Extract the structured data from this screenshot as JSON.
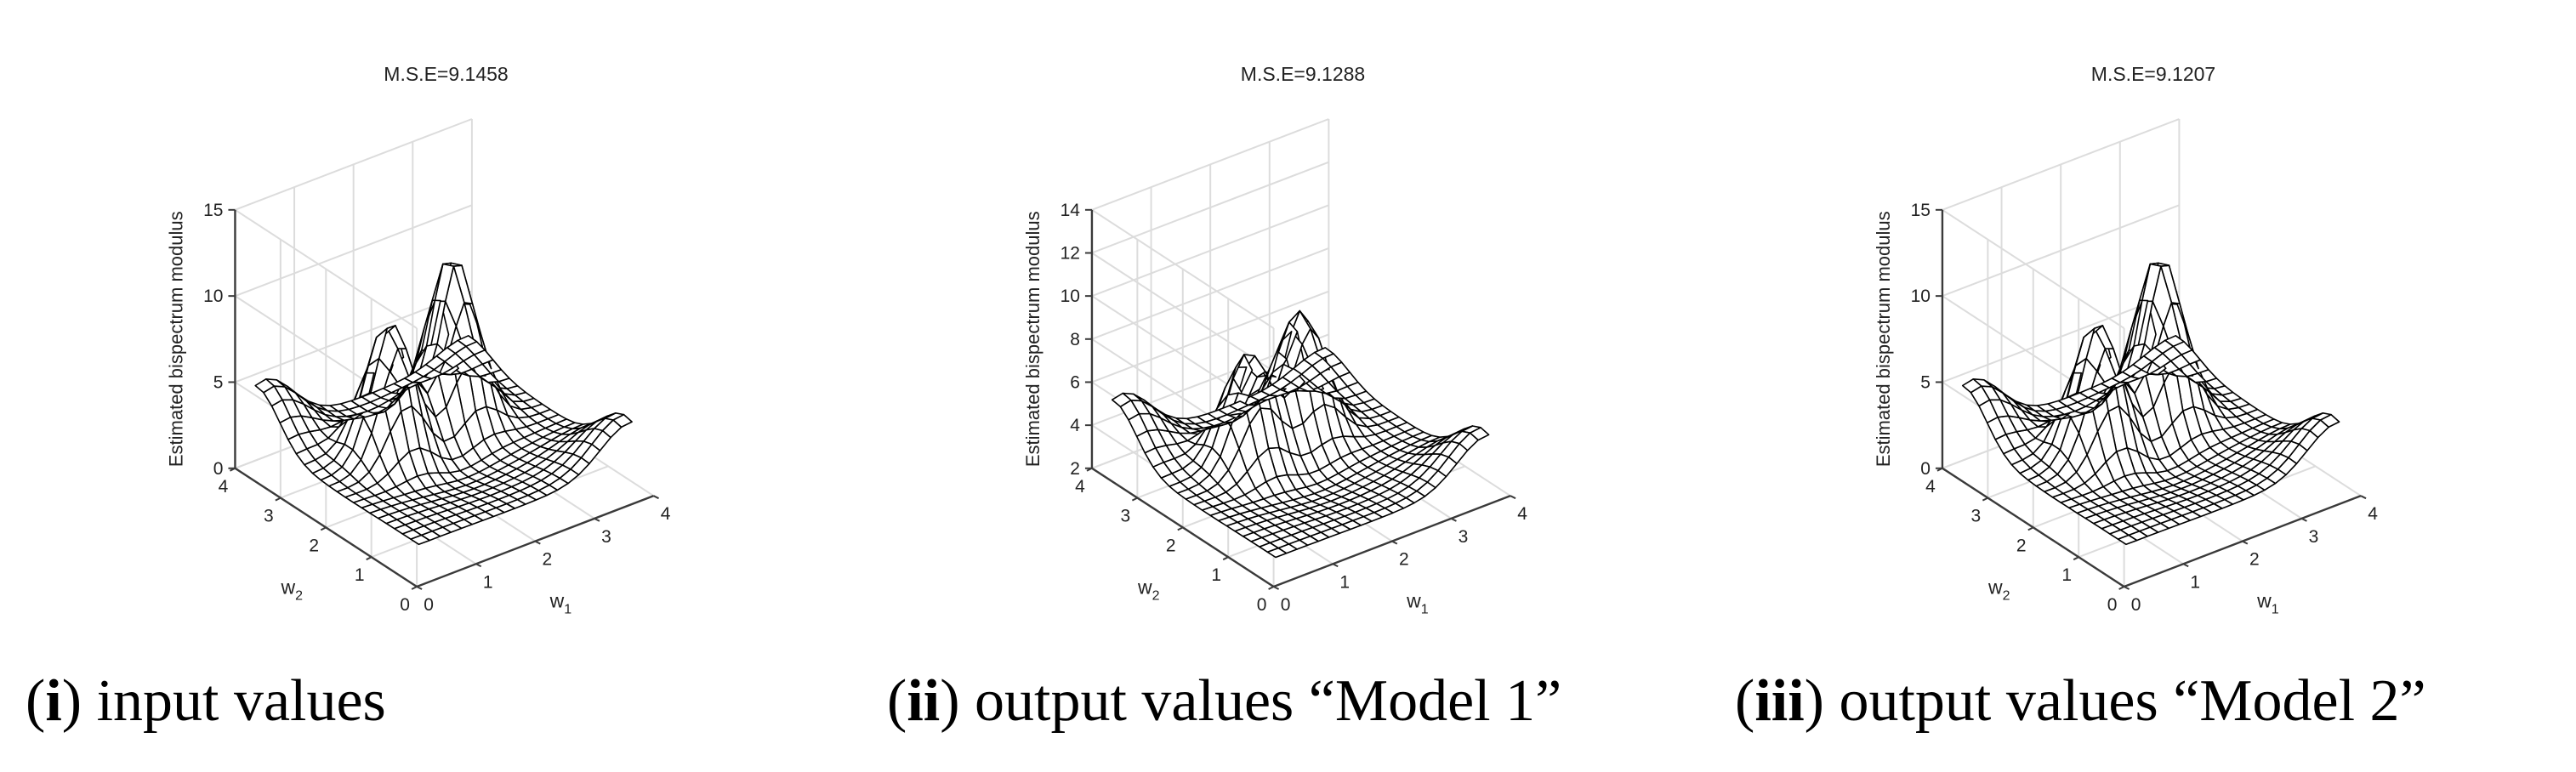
{
  "chart_data": [
    {
      "type": "surface",
      "title": "M.S.E=9.1458",
      "zlabel": "Estimated bispectrum modulus",
      "xlabel": "w",
      "xlabel_sub": "1",
      "ylabel": "w",
      "ylabel_sub": "2",
      "xlim": [
        0,
        4
      ],
      "ylim": [
        0,
        4
      ],
      "zlim": [
        0,
        15
      ],
      "x_ticks": [
        "0",
        "1",
        "2",
        "3",
        "4"
      ],
      "y_ticks": [
        "0",
        "1",
        "2",
        "3",
        "4"
      ],
      "z_ticks": [
        "0",
        "5",
        "10",
        "15"
      ],
      "grid": true,
      "surface": {
        "baseline": 2,
        "edge_bumps": [
          {
            "x": 0.3,
            "y": 3.7,
            "height": 3.2
          },
          {
            "x": 3.7,
            "y": 0.3,
            "height": 2.5
          },
          {
            "x": 3.7,
            "y": 3.7,
            "height": 1.2
          }
        ],
        "central_peaks": [
          {
            "x": 1.35,
            "y": 2.35,
            "height": 8.0
          },
          {
            "x": 2.55,
            "y": 2.55,
            "height": 9.8
          }
        ],
        "valley": {
          "x": 1.8,
          "y": 1.8,
          "depth": 0.8
        }
      },
      "caption_label": "i",
      "caption_text": "input values"
    },
    {
      "type": "surface",
      "title": "M.S.E=9.1288",
      "zlabel": "Estimated bispectrum modulus",
      "xlabel": "w",
      "xlabel_sub": "1",
      "ylabel": "w",
      "ylabel_sub": "2",
      "xlim": [
        0,
        4
      ],
      "ylim": [
        0,
        4
      ],
      "zlim": [
        2,
        14
      ],
      "x_ticks": [
        "0",
        "1",
        "2",
        "3",
        "4"
      ],
      "y_ticks": [
        "0",
        "1",
        "2",
        "3",
        "4"
      ],
      "z_ticks": [
        "2",
        "4",
        "6",
        "8",
        "10",
        "12",
        "14"
      ],
      "grid": true,
      "surface": {
        "baseline": 3,
        "edge_bumps": [
          {
            "x": 0.3,
            "y": 3.7,
            "height": 2.5
          },
          {
            "x": 3.7,
            "y": 0.3,
            "height": 2.0
          },
          {
            "x": 3.7,
            "y": 3.7,
            "height": 1.0
          }
        ],
        "central_peaks": [
          {
            "x": 1.45,
            "y": 2.45,
            "height": 5.2
          },
          {
            "x": 2.45,
            "y": 2.6,
            "height": 5.8
          }
        ],
        "valley": {
          "x": 1.8,
          "y": 1.8,
          "depth": 0.6
        }
      },
      "caption_label": "ii",
      "caption_text": "output values “Model 1”"
    },
    {
      "type": "surface",
      "title": "M.S.E=9.1207",
      "zlabel": "Estimated bispectrum modulus",
      "xlabel": "w",
      "xlabel_sub": "1",
      "ylabel": "w",
      "ylabel_sub": "2",
      "xlim": [
        0,
        4
      ],
      "ylim": [
        0,
        4
      ],
      "zlim": [
        0,
        15
      ],
      "x_ticks": [
        "0",
        "1",
        "2",
        "3",
        "4"
      ],
      "y_ticks": [
        "0",
        "1",
        "2",
        "3",
        "4"
      ],
      "z_ticks": [
        "0",
        "5",
        "10",
        "15"
      ],
      "grid": true,
      "surface": {
        "baseline": 2,
        "edge_bumps": [
          {
            "x": 0.3,
            "y": 3.7,
            "height": 3.2
          },
          {
            "x": 3.7,
            "y": 0.3,
            "height": 2.5
          },
          {
            "x": 3.7,
            "y": 3.7,
            "height": 1.2
          }
        ],
        "central_peaks": [
          {
            "x": 1.35,
            "y": 2.35,
            "height": 8.0
          },
          {
            "x": 2.55,
            "y": 2.55,
            "height": 9.8
          }
        ],
        "valley": {
          "x": 1.8,
          "y": 1.8,
          "depth": 0.8
        }
      },
      "caption_label": "iii",
      "caption_text": "output values “Model 2”"
    }
  ],
  "colors": {
    "grid": "#dcdcdc",
    "axis": "#3a3a3a",
    "mesh": "#000000",
    "surface_fill": "#ffffff"
  }
}
